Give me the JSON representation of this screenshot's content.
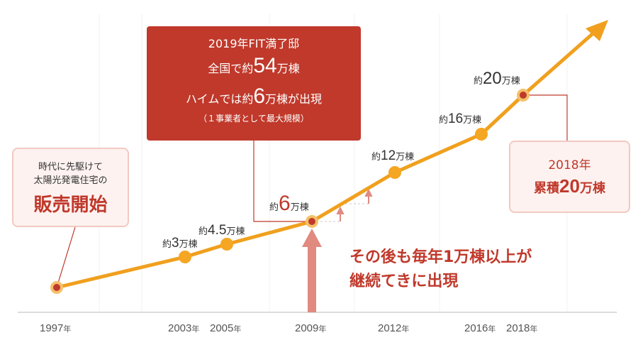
{
  "chart_data": {
    "type": "line",
    "title": "",
    "xlabel": "",
    "ylabel": "",
    "series": [
      {
        "x": [
          1997,
          2003,
          2005,
          2009,
          2012,
          2016,
          2018
        ],
        "values": [
          0,
          3,
          4.5,
          6,
          12,
          16,
          20
        ]
      }
    ],
    "x_ticks": [
      {
        "year": "1997",
        "unit": "年"
      },
      {
        "year": "2003",
        "unit": "年"
      },
      {
        "year": "2005",
        "unit": "年"
      },
      {
        "year": "2009",
        "unit": "年"
      },
      {
        "year": "2012",
        "unit": "年"
      },
      {
        "year": "2016",
        "unit": "年"
      },
      {
        "year": "2018",
        "unit": "年"
      }
    ],
    "point_labels": [
      {
        "year": 2003,
        "prefix": "約",
        "num": "3",
        "unit": "万棟"
      },
      {
        "year": 2005,
        "prefix": "約",
        "num": "4.5",
        "unit": "万棟"
      },
      {
        "year": 2009,
        "prefix": "約",
        "num": "6",
        "unit": "万棟"
      },
      {
        "year": 2012,
        "prefix": "約",
        "num": "12",
        "unit": "万棟"
      },
      {
        "year": 2016,
        "prefix": "約",
        "num": "16",
        "unit": "万棟"
      },
      {
        "year": 2018,
        "prefix": "約",
        "num": "20",
        "unit": "万棟"
      }
    ],
    "colors": {
      "line": "#f0a01e",
      "point_fill": "#f5a623",
      "marker_red": "#c0392b",
      "accent": "#c0392b",
      "arrow_up": "#e08a80"
    }
  },
  "annotations": {
    "fit_box": {
      "line1": "2019年FIT満了邸",
      "line2_pre": "全国で約",
      "line2_num": "54",
      "line2_post": "万棟",
      "line3_pre": "ハイムでは約",
      "line3_num": "6",
      "line3_post": "万棟が出現",
      "line4": "（１事業者として最大規模）"
    },
    "start_box": {
      "line1": "時代に先駆けて",
      "line2": "太陽光発電住宅の",
      "line3": "販売開始"
    },
    "cumulative_box": {
      "line1": "2018年",
      "line2_pre": "累積",
      "line2_num": "20",
      "line2_post": "万棟"
    },
    "after_note": {
      "line1": "その後も毎年1万棟以上が",
      "line2": "継続てきに出現"
    }
  }
}
